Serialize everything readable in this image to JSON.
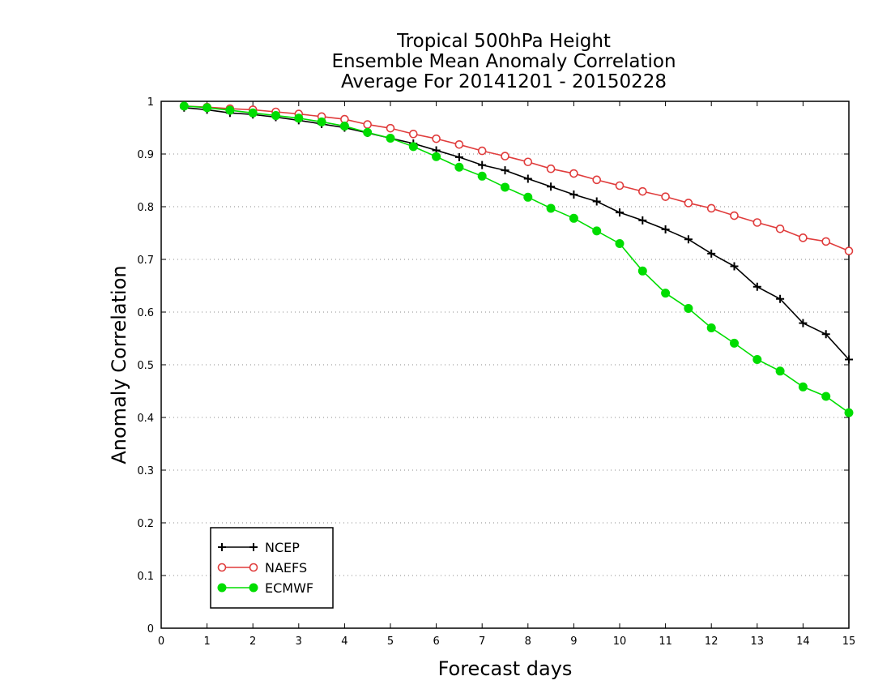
{
  "chart_data": {
    "type": "line",
    "title": [
      "Tropical 500hPa Height",
      "Ensemble Mean Anomaly Correlation",
      "Average For 20141201 - 20150228"
    ],
    "xlabel": "Forecast days",
    "ylabel": "Anomaly Correlation",
    "xlim": [
      0,
      15
    ],
    "ylim": [
      0,
      1
    ],
    "x_ticks": [
      0,
      1,
      2,
      3,
      4,
      5,
      6,
      7,
      8,
      9,
      10,
      11,
      12,
      13,
      14,
      15
    ],
    "x_tick_labels": [
      "0",
      "1",
      "2",
      "3",
      "4",
      "5",
      "6",
      "7",
      "8",
      "9",
      "10",
      "11",
      "12",
      "13",
      "14",
      "15"
    ],
    "y_ticks": [
      0,
      0.1,
      0.2,
      0.3,
      0.4,
      0.5,
      0.6,
      0.7,
      0.8,
      0.9,
      1
    ],
    "y_tick_labels": [
      "0",
      "0.1",
      "0.2",
      "0.3",
      "0.4",
      "0.5",
      "0.6",
      "0.7",
      "0.8",
      "0.9",
      "1"
    ],
    "grid": "horizontal-dotted",
    "legend_position": "bottom-left",
    "x": [
      0.5,
      1,
      1.5,
      2,
      2.5,
      3,
      3.5,
      4,
      4.5,
      5,
      5.5,
      6,
      6.5,
      7,
      7.5,
      8,
      8.5,
      9,
      9.5,
      10,
      10.5,
      11,
      11.5,
      12,
      12.5,
      13,
      13.5,
      14,
      14.5,
      15
    ],
    "series": [
      {
        "name": "NCEP",
        "marker": "plus",
        "color": "#000000",
        "values": [
          0.988,
          0.984,
          0.978,
          0.975,
          0.97,
          0.964,
          0.957,
          0.95,
          0.94,
          0.93,
          0.92,
          0.907,
          0.894,
          0.879,
          0.869,
          0.853,
          0.838,
          0.823,
          0.81,
          0.789,
          0.774,
          0.757,
          0.738,
          0.711,
          0.687,
          0.648,
          0.625,
          0.579,
          0.558,
          0.51
        ]
      },
      {
        "name": "NAEFS",
        "marker": "open-circle",
        "color": "#e03c3c",
        "values": [
          0.991,
          0.989,
          0.986,
          0.984,
          0.98,
          0.976,
          0.971,
          0.966,
          0.956,
          0.949,
          0.938,
          0.929,
          0.918,
          0.906,
          0.896,
          0.885,
          0.872,
          0.863,
          0.851,
          0.84,
          0.829,
          0.819,
          0.807,
          0.797,
          0.783,
          0.77,
          0.758,
          0.741,
          0.734,
          0.716
        ]
      },
      {
        "name": "ECMWF",
        "marker": "filled-circle",
        "color": "#00dd00",
        "values": [
          0.991,
          0.988,
          0.983,
          0.978,
          0.973,
          0.968,
          0.961,
          0.953,
          0.941,
          0.93,
          0.914,
          0.895,
          0.875,
          0.858,
          0.837,
          0.818,
          0.797,
          0.778,
          0.754,
          0.73,
          0.678,
          0.636,
          0.607,
          0.57,
          0.541,
          0.51,
          0.488,
          0.458,
          0.44,
          0.409
        ]
      }
    ]
  }
}
